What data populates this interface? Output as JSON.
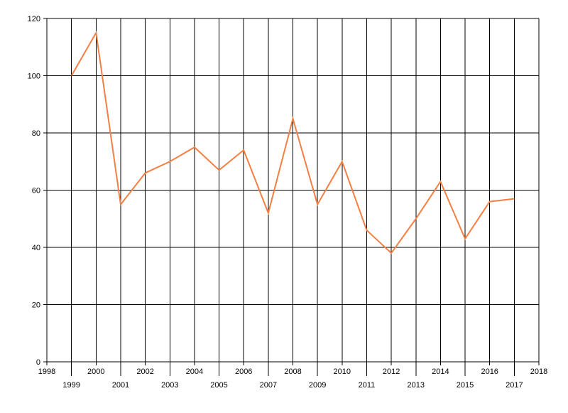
{
  "chart_data": {
    "type": "line",
    "title": "",
    "xlabel": "",
    "ylabel": "",
    "xlim": [
      1998,
      2018
    ],
    "ylim": [
      0,
      120
    ],
    "x_ticks": [
      1998,
      1999,
      2000,
      2001,
      2002,
      2003,
      2004,
      2005,
      2006,
      2007,
      2008,
      2009,
      2010,
      2011,
      2012,
      2013,
      2014,
      2015,
      2016,
      2017,
      2018
    ],
    "y_ticks": [
      0,
      20,
      40,
      60,
      80,
      100,
      120
    ],
    "grid": true,
    "legend": "none",
    "series": [
      {
        "color": "#F47F43",
        "x": [
          1999,
          2000,
          2001,
          2002,
          2003,
          2004,
          2005,
          2006,
          2007,
          2008,
          2009,
          2010,
          2011,
          2012,
          2013,
          2014,
          2015,
          2016,
          2017
        ],
        "values": [
          100,
          115,
          55,
          66,
          70,
          75,
          67,
          74,
          52,
          85,
          55,
          70,
          46,
          38,
          50,
          63,
          43,
          56,
          57
        ]
      }
    ]
  }
}
